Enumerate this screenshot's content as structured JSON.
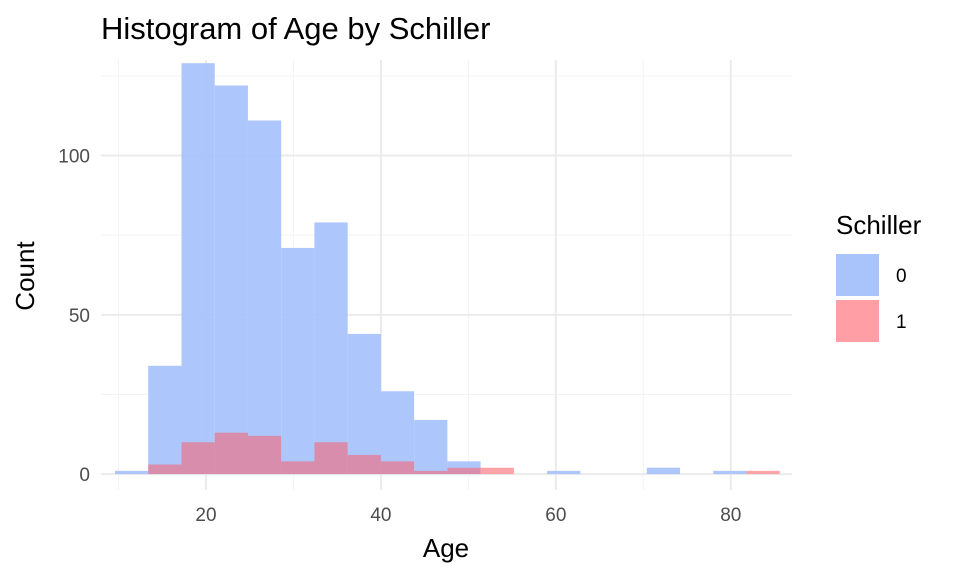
{
  "chart_data": {
    "type": "bar",
    "title": "Histogram of Age by Schiller",
    "xlabel": "Age",
    "ylabel": "Count",
    "xlim": [
      8,
      87
    ],
    "ylim": [
      -5,
      130
    ],
    "x_ticks": [
      20,
      40,
      60,
      80
    ],
    "y_ticks": [
      0,
      50,
      100
    ],
    "bin_width": 3.8,
    "bin_centers": [
      11.5,
      15.3,
      19.1,
      22.9,
      26.7,
      30.5,
      34.3,
      38.1,
      41.9,
      45.7,
      49.5,
      53.3,
      57.1,
      60.9,
      64.7,
      68.5,
      72.3,
      76.1,
      79.9,
      83.7
    ],
    "grid": true,
    "legend": {
      "title": "Schiller",
      "position": "right"
    },
    "series": [
      {
        "name": "0",
        "color": "#a9c3fb",
        "values": [
          1,
          34,
          129,
          122,
          111,
          71,
          79,
          44,
          26,
          17,
          4,
          0,
          0,
          1,
          0,
          0,
          2,
          0,
          1,
          0
        ]
      },
      {
        "name": "1",
        "color": "#ff9ea4",
        "values": [
          0,
          3,
          10,
          13,
          12,
          4,
          10,
          6,
          4,
          1,
          2,
          2,
          0,
          0,
          0,
          0,
          0,
          0,
          0,
          1
        ]
      }
    ]
  }
}
